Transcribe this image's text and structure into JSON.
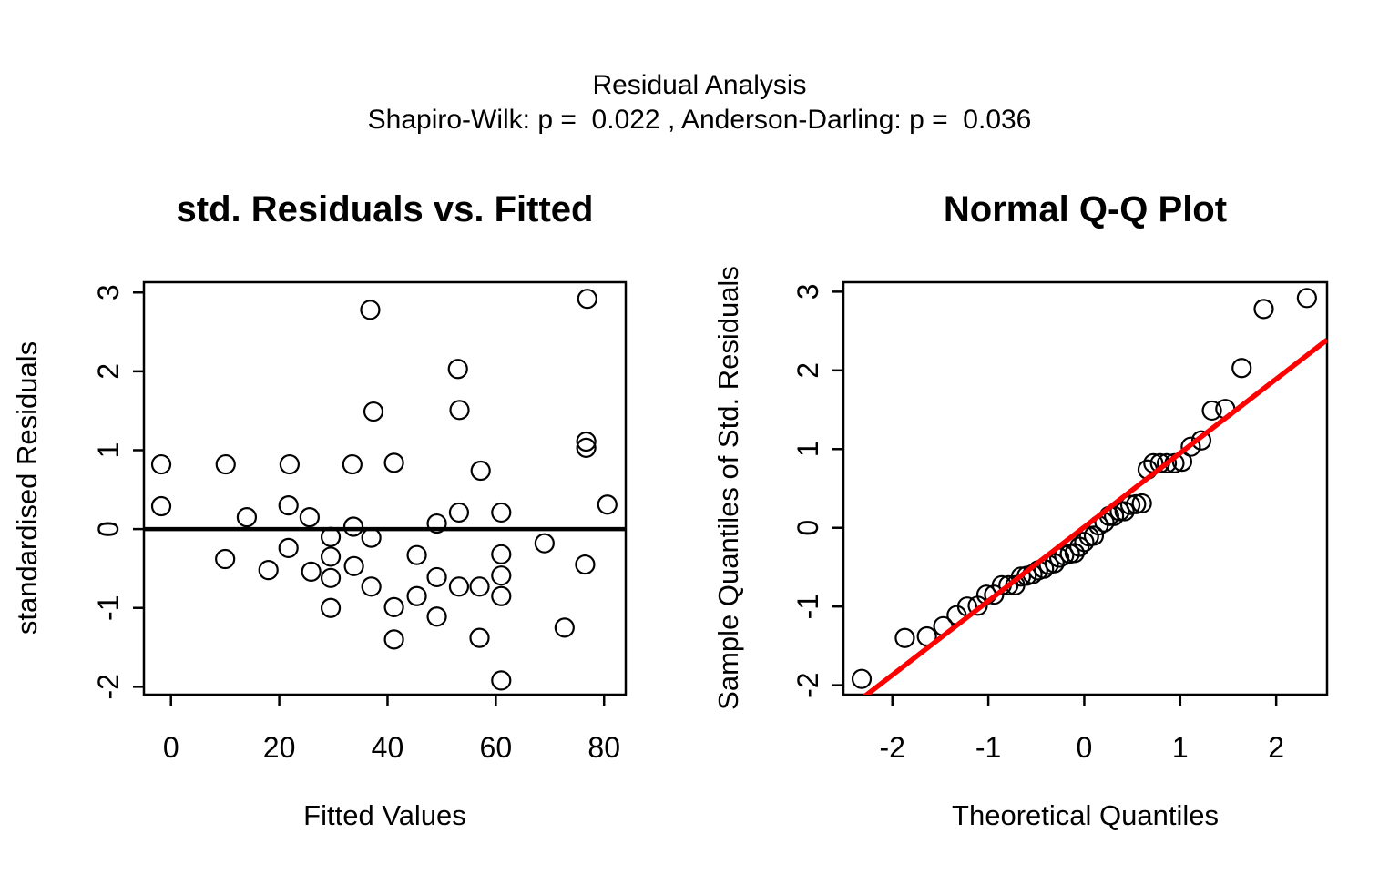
{
  "header": {
    "title": "Residual Analysis",
    "subtitle": "Shapiro-Wilk: p =  0.022 , Anderson-Darling: p =  0.036"
  },
  "colors": {
    "foreground": "#000000",
    "background": "#ffffff",
    "reference_line": "#ff0000"
  },
  "chart_data": [
    {
      "type": "scatter",
      "title": "std. Residuals vs. Fitted",
      "xlabel": "Fitted Values",
      "ylabel": "standardised Residuals",
      "xlim": [
        -5,
        84
      ],
      "ylim": [
        -2.1,
        3.13
      ],
      "xticks": [
        0,
        20,
        40,
        60,
        80
      ],
      "yticks": [
        -2,
        -1,
        0,
        1,
        2,
        3
      ],
      "grid": false,
      "zero_line": 0,
      "marker": "open-circle",
      "points": [
        [
          -1.8,
          0.82
        ],
        [
          10.1,
          0.82
        ],
        [
          21.9,
          0.82
        ],
        [
          33.5,
          0.82
        ],
        [
          41.2,
          0.84
        ],
        [
          36.8,
          2.78
        ],
        [
          76.9,
          2.92
        ],
        [
          53.0,
          2.03
        ],
        [
          37.4,
          1.49
        ],
        [
          53.3,
          1.51
        ],
        [
          76.7,
          1.11
        ],
        [
          76.7,
          1.03
        ],
        [
          57.2,
          0.74
        ],
        [
          -1.8,
          0.29
        ],
        [
          14.0,
          0.15
        ],
        [
          21.7,
          0.3
        ],
        [
          25.6,
          0.15
        ],
        [
          33.7,
          0.03
        ],
        [
          29.5,
          -0.1
        ],
        [
          37.0,
          -0.11
        ],
        [
          21.7,
          -0.24
        ],
        [
          10.0,
          -0.38
        ],
        [
          29.5,
          -0.35
        ],
        [
          33.8,
          -0.47
        ],
        [
          18.0,
          -0.52
        ],
        [
          25.9,
          -0.54
        ],
        [
          29.5,
          -0.62
        ],
        [
          37.0,
          -0.73
        ],
        [
          29.5,
          -1.0
        ],
        [
          49.1,
          0.07
        ],
        [
          53.2,
          0.21
        ],
        [
          61.0,
          0.21
        ],
        [
          80.6,
          0.31
        ],
        [
          69.0,
          -0.18
        ],
        [
          45.4,
          -0.33
        ],
        [
          61.0,
          -0.32
        ],
        [
          76.5,
          -0.45
        ],
        [
          49.1,
          -0.61
        ],
        [
          53.2,
          -0.73
        ],
        [
          57.0,
          -0.73
        ],
        [
          61.0,
          -0.59
        ],
        [
          61.0,
          -0.85
        ],
        [
          45.4,
          -0.85
        ],
        [
          41.2,
          -0.99
        ],
        [
          49.1,
          -1.11
        ],
        [
          41.2,
          -1.4
        ],
        [
          57.0,
          -1.38
        ],
        [
          72.7,
          -1.25
        ],
        [
          61.0,
          -1.92
        ]
      ]
    },
    {
      "type": "scatter",
      "title": "Normal Q-Q Plot",
      "xlabel": "Theoretical Quantiles",
      "ylabel": "Sample Quantiles of Std. Residuals",
      "xlim": [
        -2.51,
        2.53
      ],
      "ylim": [
        -2.12,
        3.12
      ],
      "xticks": [
        -2,
        -1,
        0,
        1,
        2
      ],
      "yticks": [
        -2,
        -1,
        0,
        1,
        2,
        3
      ],
      "grid": false,
      "ref_line": {
        "slope": 0.94,
        "intercept": 0.01,
        "color": "#ff0000"
      },
      "marker": "open-circle",
      "points": [
        [
          -2.32,
          -1.92
        ],
        [
          -1.87,
          -1.4
        ],
        [
          -1.64,
          -1.38
        ],
        [
          -1.47,
          -1.25
        ],
        [
          -1.33,
          -1.11
        ],
        [
          -1.22,
          -1.0
        ],
        [
          -1.11,
          -0.99
        ],
        [
          -1.02,
          -0.85
        ],
        [
          -0.94,
          -0.85
        ],
        [
          -0.86,
          -0.73
        ],
        [
          -0.79,
          -0.73
        ],
        [
          -0.72,
          -0.73
        ],
        [
          -0.66,
          -0.62
        ],
        [
          -0.6,
          -0.61
        ],
        [
          -0.54,
          -0.59
        ],
        [
          -0.48,
          -0.54
        ],
        [
          -0.42,
          -0.52
        ],
        [
          -0.37,
          -0.47
        ],
        [
          -0.31,
          -0.45
        ],
        [
          -0.26,
          -0.38
        ],
        [
          -0.21,
          -0.35
        ],
        [
          -0.15,
          -0.33
        ],
        [
          -0.1,
          -0.32
        ],
        [
          -0.05,
          -0.24
        ],
        [
          0.0,
          -0.18
        ],
        [
          0.05,
          -0.11
        ],
        [
          0.1,
          -0.1
        ],
        [
          0.15,
          0.03
        ],
        [
          0.21,
          0.07
        ],
        [
          0.26,
          0.15
        ],
        [
          0.31,
          0.15
        ],
        [
          0.37,
          0.21
        ],
        [
          0.42,
          0.21
        ],
        [
          0.48,
          0.29
        ],
        [
          0.54,
          0.3
        ],
        [
          0.6,
          0.31
        ],
        [
          0.66,
          0.74
        ],
        [
          0.72,
          0.82
        ],
        [
          0.79,
          0.82
        ],
        [
          0.86,
          0.82
        ],
        [
          0.94,
          0.82
        ],
        [
          1.02,
          0.84
        ],
        [
          1.11,
          1.03
        ],
        [
          1.22,
          1.11
        ],
        [
          1.33,
          1.49
        ],
        [
          1.47,
          1.51
        ],
        [
          1.64,
          2.03
        ],
        [
          1.87,
          2.78
        ],
        [
          2.32,
          2.92
        ]
      ]
    }
  ]
}
